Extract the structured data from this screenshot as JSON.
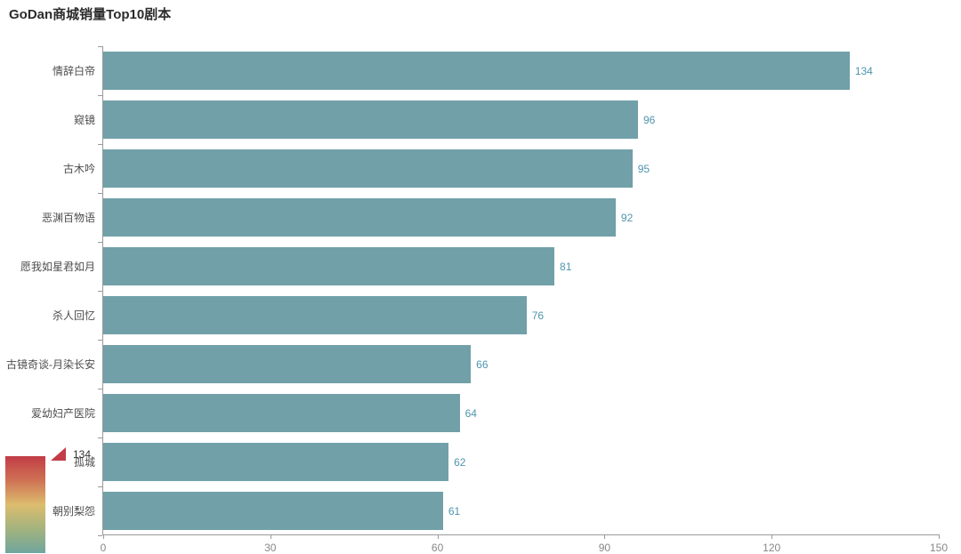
{
  "chart_data": {
    "type": "bar",
    "orientation": "horizontal",
    "title": "GoDan商城销量Top10剧本",
    "categories": [
      "情辞白帝",
      "窥镜",
      "古木吟",
      "恶渊百物语",
      "愿我如星君如月",
      "杀人回忆",
      "古镜奇谈-月染长安",
      "爱幼妇产医院",
      "孤城",
      "朝别梨怨"
    ],
    "values": [
      134,
      96,
      95,
      92,
      81,
      76,
      66,
      64,
      62,
      61
    ],
    "xlabel": "",
    "ylabel": "",
    "xlim": [
      0,
      150
    ],
    "x_ticks": [
      "0",
      "30",
      "60",
      "90",
      "120",
      "150"
    ],
    "grid": false,
    "legend_position": "none",
    "bar_color": "#71a0a9",
    "value_label_color": "#4e95ae",
    "axis_color": "#999999",
    "tick_label_color": "#878787",
    "category_label_color": "#4d4d4d"
  },
  "visual_map": {
    "max_label": "134",
    "handle_color": "#c23c46",
    "gradient": [
      "#c23c46",
      "#cf7254",
      "#dcbd6e",
      "#a3b37e",
      "#6fa69e"
    ]
  }
}
